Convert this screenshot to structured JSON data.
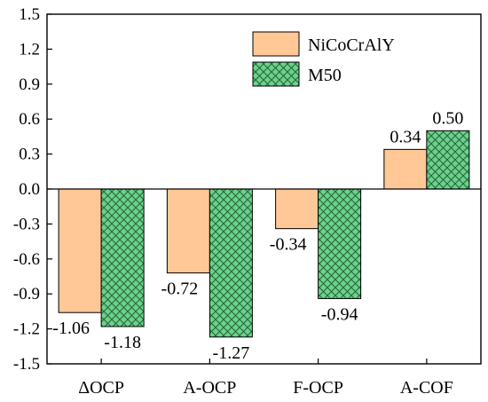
{
  "chart_data": {
    "type": "bar",
    "categories": [
      "ΔOCP",
      "A-OCP",
      "F-OCP",
      "A-COF"
    ],
    "series": [
      {
        "name": "NiCoCrAlY",
        "values": [
          -1.06,
          -0.72,
          -0.34,
          0.34
        ],
        "labels": [
          "-1.06",
          "-0.72",
          "-0.34",
          "0.34"
        ],
        "color": "#ffc896",
        "pattern": "solid"
      },
      {
        "name": "M50",
        "values": [
          -1.18,
          -1.27,
          -0.94,
          0.5
        ],
        "labels": [
          "-1.18",
          "-1.27",
          "-0.94",
          "0.50"
        ],
        "color": "#6fd08c",
        "pattern": "crosshatch"
      }
    ],
    "y_ticks": [
      "-1.5",
      "-1.2",
      "-0.9",
      "-0.6",
      "-0.3",
      "0.0",
      "0.3",
      "0.6",
      "0.9",
      "1.2",
      "1.5"
    ],
    "ylim": [
      -1.5,
      1.5
    ],
    "xlabel": "",
    "ylabel": "",
    "title": "",
    "legend_position": "top-right",
    "grid": false
  }
}
